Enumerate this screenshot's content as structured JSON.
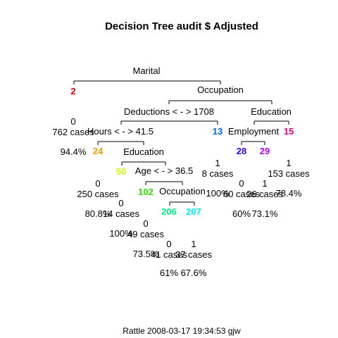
{
  "title": "Decision Tree audit $ Adjusted",
  "footer": "Rattle 2008-03-17 19:34:53 gjw",
  "splits": {
    "marital": "Marital",
    "occupation_1": "Occupation",
    "deductions": "Deductions < - > 1708",
    "education_1": "Education",
    "hours": "Hours < - > 41.5",
    "employment": "Employment",
    "education_2": "Education",
    "age": "Age < - > 36.5",
    "occupation_2": "Occupation"
  },
  "node_numbers": {
    "n2": "2",
    "n13": "13",
    "n15": "15",
    "n24": "24",
    "n28": "28",
    "n29": "29",
    "n50": "50",
    "n102": "102",
    "n206": "206",
    "n207": "207"
  },
  "node_colors": {
    "n2": "#e00000",
    "n13": "#0064ff",
    "n15": "#e6007a",
    "n24": "#f0a000",
    "n28": "#3300ff",
    "n29": "#b400ff",
    "n50": "#ccff00",
    "n102": "#33dd00",
    "n206": "#00ee88",
    "n207": "#00eeee"
  },
  "leaves": {
    "n2": {
      "class": "0",
      "cases": "762 cases",
      "pct": "94.4%"
    },
    "n24": {
      "class": "0",
      "cases": "250 cases",
      "pct": "80.8%"
    },
    "n13": {
      "class": "1",
      "cases": "8 cases",
      "pct": "100%"
    },
    "n28": {
      "class": "0",
      "cases": "60 cases",
      "pct": "60%"
    },
    "n29": {
      "class": "1",
      "cases": "26 cases",
      "pct": "73.1%"
    },
    "n15": {
      "class": "1",
      "cases": "153 cases",
      "pct": "78.4%"
    },
    "n50": {
      "class": "0",
      "cases": "14 cases",
      "pct": "100%"
    },
    "n102": {
      "class": "0",
      "cases": "49 cases",
      "pct": "73.5%"
    },
    "n206": {
      "class": "0",
      "cases": "41 cases",
      "pct": "61%"
    },
    "n207": {
      "class": "1",
      "cases": "37 cases",
      "pct": "67.6%"
    }
  }
}
